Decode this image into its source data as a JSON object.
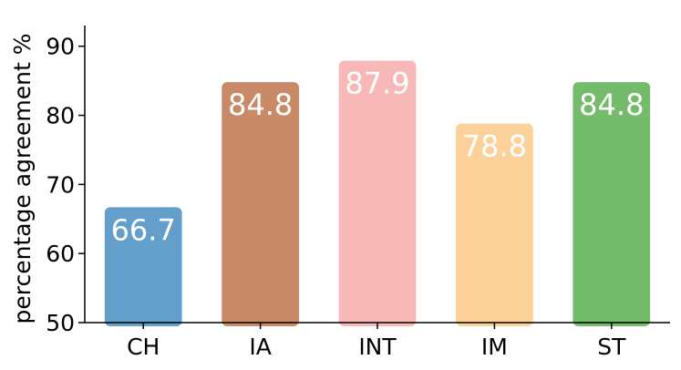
{
  "chart_data": {
    "type": "bar",
    "title": "",
    "xlabel": "",
    "ylabel": "percentage agreement %",
    "ylim": [
      50,
      93
    ],
    "yticks": [
      50,
      60,
      70,
      80,
      90
    ],
    "grid": false,
    "legend": "none",
    "categories": [
      "CH",
      "IA",
      "INT",
      "IM",
      "ST"
    ],
    "values": [
      66.7,
      84.8,
      87.9,
      78.8,
      84.8
    ],
    "data_labels": [
      "66.7",
      "84.8",
      "87.9",
      "78.8",
      "84.8"
    ],
    "colors": [
      "#649fcb",
      "#c98a68",
      "#f8b8b8",
      "#fdd29a",
      "#74bb6c"
    ],
    "axis_color": "#000000",
    "label_color": "#ffffff"
  }
}
